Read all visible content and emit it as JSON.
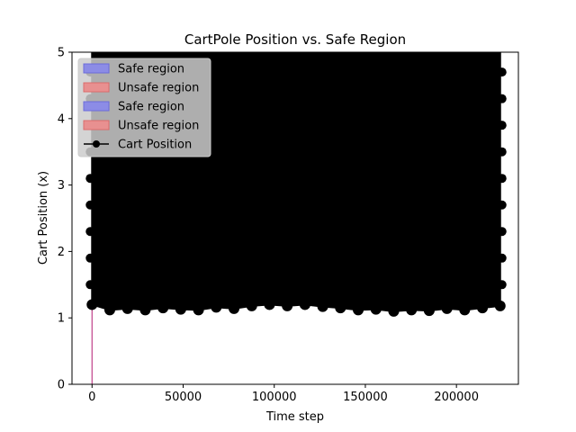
{
  "chart_data": {
    "type": "line",
    "title": "CartPole Position vs. Safe Region",
    "xlabel": "Time step",
    "ylabel": "Cart Position (x)",
    "xlim": [
      -11000,
      234000
    ],
    "ylim": [
      0,
      5
    ],
    "x_ticks": [
      0,
      50000,
      100000,
      150000,
      200000
    ],
    "x_tick_labels": [
      "0",
      "50000",
      "100000",
      "150000",
      "200000"
    ],
    "y_ticks": [
      0,
      1,
      2,
      3,
      4,
      5
    ],
    "y_tick_labels": [
      "0",
      "1",
      "2",
      "3",
      "4",
      "5"
    ],
    "grid": false,
    "legend_position": "top-left",
    "legend": [
      {
        "label": "Safe region",
        "kind": "patch",
        "color": "#8c8ce6",
        "edge": "#6b6bdb"
      },
      {
        "label": "Unsafe region",
        "kind": "patch",
        "color": "#e89090",
        "edge": "#db6b6b"
      },
      {
        "label": "Safe region",
        "kind": "patch",
        "color": "#8c8ce6",
        "edge": "#6b6bdb"
      },
      {
        "label": "Unsafe region",
        "kind": "patch",
        "color": "#e89090",
        "edge": "#db6b6b"
      },
      {
        "label": "Cart Position",
        "kind": "line-marker",
        "color": "#000000"
      }
    ],
    "series": [
      {
        "name": "Cart Position",
        "color": "#000000",
        "x_range": [
          0,
          224000
        ],
        "y_lower_envelope": [
          1.2,
          1.12,
          1.14,
          1.12,
          1.15,
          1.13,
          1.12,
          1.16,
          1.14,
          1.18,
          1.2,
          1.18,
          1.2,
          1.17,
          1.15,
          1.12,
          1.13,
          1.1,
          1.12,
          1.11,
          1.14,
          1.12,
          1.15,
          1.18
        ],
        "y_upper": 5
      }
    ],
    "region_lines": [
      {
        "x": 0,
        "y_from": 0,
        "y_to": 1.15,
        "color": "#c0408a"
      }
    ]
  }
}
